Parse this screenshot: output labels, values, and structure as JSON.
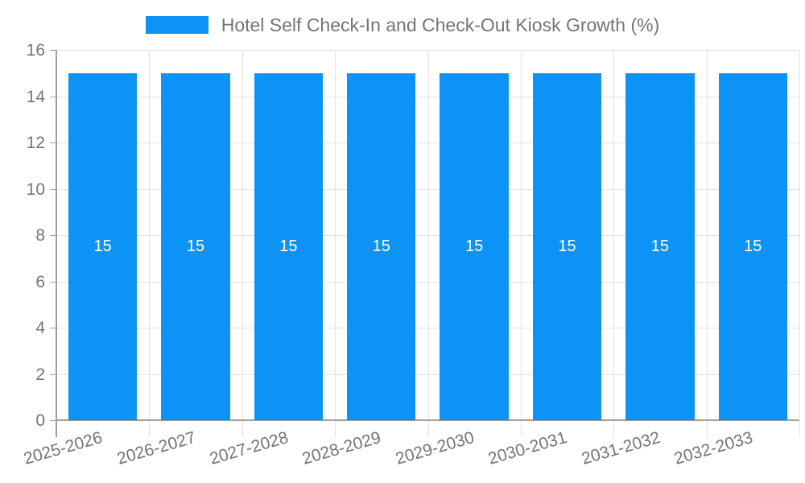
{
  "chart_data": {
    "type": "bar",
    "title": "Hotel Self Check-In and Check-Out Kiosk Growth (%)",
    "categories": [
      "2025-2026",
      "2026-2027",
      "2027-2028",
      "2028-2029",
      "2029-2030",
      "2030-2031",
      "2031-2032",
      "2032-2033"
    ],
    "values": [
      15,
      15,
      15,
      15,
      15,
      15,
      15,
      15
    ],
    "bar_labels": [
      "15",
      "15",
      "15",
      "15",
      "15",
      "15",
      "15",
      "15"
    ],
    "xlabel": "",
    "ylabel": "",
    "ylim": [
      0,
      16
    ],
    "yticks": [
      0,
      2,
      4,
      6,
      8,
      10,
      12,
      14,
      16
    ],
    "grid": "on",
    "legend_position": "top-center",
    "colors": {
      "bar": "#0D93F5",
      "grid": "#E2E2E2",
      "axis": "#9E9E9E",
      "text": "#757575",
      "bar_label": "#FFFFFF"
    }
  }
}
